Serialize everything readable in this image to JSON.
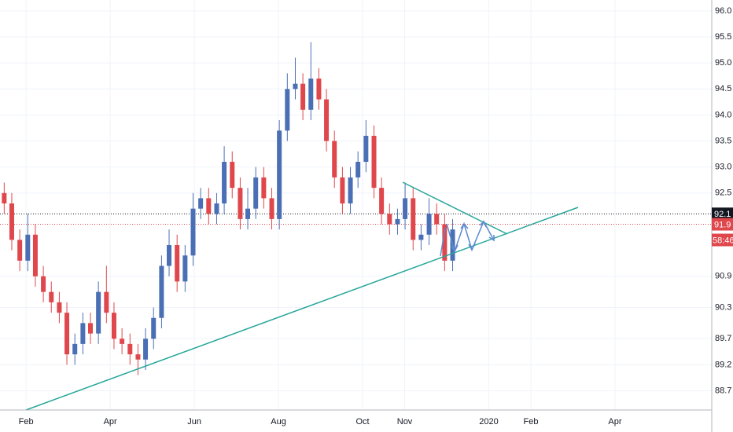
{
  "chart_data": {
    "type": "candlestick",
    "x": [
      0.48,
      0.66,
      0.85,
      1.04,
      1.22,
      1.41,
      1.6,
      1.79,
      1.97,
      2.16,
      2.35,
      2.53,
      2.72,
      2.91,
      3.09,
      3.28,
      3.47,
      3.66,
      3.84,
      4.03,
      4.22,
      4.4,
      4.59,
      4.78,
      4.97,
      5.15,
      5.34,
      5.53,
      5.71,
      5.9,
      6.09,
      6.27,
      6.46,
      6.65,
      6.84,
      7.02,
      7.21,
      7.4,
      7.58,
      7.77,
      7.96,
      8.14,
      8.33,
      8.52,
      8.71,
      8.89,
      9.08,
      9.27,
      9.45,
      9.64,
      9.83,
      10.01,
      10.2,
      10.39,
      10.58,
      10.76,
      10.95,
      11.14
    ],
    "open": [
      92.5,
      92.3,
      91.6,
      91.2,
      91.7,
      90.9,
      90.6,
      90.4,
      90.2,
      89.4,
      89.6,
      90.0,
      89.8,
      90.6,
      90.2,
      89.7,
      89.6,
      89.4,
      89.3,
      89.7,
      90.1,
      91.1,
      91.5,
      90.8,
      91.3,
      92.2,
      92.4,
      92.1,
      92.3,
      93.1,
      92.6,
      92.0,
      92.2,
      92.8,
      92.4,
      92.0,
      93.7,
      94.5,
      94.6,
      94.1,
      94.7,
      94.3,
      93.5,
      92.8,
      92.3,
      92.8,
      93.1,
      93.6,
      92.6,
      92.1,
      91.9,
      92.0,
      92.4,
      91.6,
      91.7,
      92.1,
      91.9,
      91.2
    ],
    "high": [
      92.7,
      92.5,
      91.8,
      92.1,
      91.9,
      91.1,
      90.8,
      90.6,
      90.4,
      89.8,
      90.2,
      90.2,
      90.8,
      91.1,
      90.4,
      89.9,
      89.8,
      89.6,
      89.9,
      90.3,
      91.3,
      91.8,
      91.7,
      91.5,
      92.5,
      92.6,
      92.6,
      92.5,
      93.4,
      93.3,
      92.8,
      92.6,
      93.0,
      93.0,
      92.6,
      93.9,
      94.8,
      95.1,
      94.8,
      95.4,
      94.9,
      94.5,
      93.7,
      93.0,
      93.0,
      93.3,
      93.9,
      93.8,
      92.8,
      92.3,
      92.2,
      92.7,
      92.6,
      91.9,
      92.4,
      92.3,
      92.1,
      92.0
    ],
    "low": [
      92.1,
      91.4,
      91.0,
      91.0,
      90.7,
      90.4,
      90.2,
      90.0,
      89.2,
      89.2,
      89.4,
      89.6,
      89.6,
      90.0,
      89.5,
      89.4,
      89.2,
      89.0,
      89.1,
      89.5,
      89.9,
      90.9,
      90.6,
      90.6,
      91.1,
      92.0,
      91.9,
      91.9,
      92.1,
      92.4,
      91.8,
      91.8,
      92.0,
      92.2,
      91.8,
      91.8,
      93.5,
      94.3,
      93.9,
      93.9,
      94.1,
      93.3,
      92.6,
      92.1,
      92.1,
      92.6,
      92.9,
      92.4,
      91.9,
      91.7,
      91.7,
      91.8,
      91.4,
      91.4,
      91.5,
      91.7,
      91.0,
      91.0
    ],
    "close": [
      92.3,
      91.6,
      91.2,
      91.7,
      90.9,
      90.6,
      90.4,
      90.2,
      89.4,
      89.6,
      90.0,
      89.8,
      90.6,
      90.2,
      89.7,
      89.6,
      89.4,
      89.3,
      89.7,
      90.1,
      91.1,
      91.5,
      90.8,
      91.3,
      92.2,
      92.4,
      92.1,
      92.3,
      93.1,
      92.6,
      92.0,
      92.2,
      92.8,
      92.4,
      92.0,
      93.7,
      94.5,
      94.6,
      94.1,
      94.7,
      94.3,
      93.5,
      92.8,
      92.3,
      92.8,
      93.1,
      93.6,
      92.6,
      92.1,
      91.9,
      92.0,
      92.4,
      91.6,
      91.7,
      92.1,
      91.9,
      91.2,
      91.8
    ],
    "up_color": "#4a6fb5",
    "down_color": "#e0474c",
    "xlim": [
      0.38,
      17.3
    ],
    "xticks": [
      {
        "value": 1,
        "label": "Feb"
      },
      {
        "value": 3,
        "label": "Apr"
      },
      {
        "value": 5,
        "label": "Jun"
      },
      {
        "value": 7,
        "label": "Aug"
      },
      {
        "value": 9,
        "label": "Oct"
      },
      {
        "value": 10,
        "label": "Nov"
      },
      {
        "value": 12,
        "label": "2020"
      },
      {
        "value": 13,
        "label": "Feb"
      },
      {
        "value": 15,
        "label": "Apr"
      }
    ],
    "ylim": [
      88.33,
      96.21
    ],
    "yticks": [
      {
        "value": 96,
        "label": "96.0"
      },
      95.5,
      {
        "value": 95,
        "label": "95.0"
      },
      94.5,
      {
        "value": 94,
        "label": "94.0"
      },
      93.5,
      {
        "value": 93,
        "label": "93.0"
      },
      92.5,
      90.9,
      90.3,
      89.7,
      89.2,
      88.7
    ],
    "grid": true,
    "price_lines": [
      {
        "value": 92.1,
        "color": "#131722"
      },
      {
        "value": 91.9,
        "color": "#e0474c"
      }
    ],
    "countdown": "58:46"
  }
}
